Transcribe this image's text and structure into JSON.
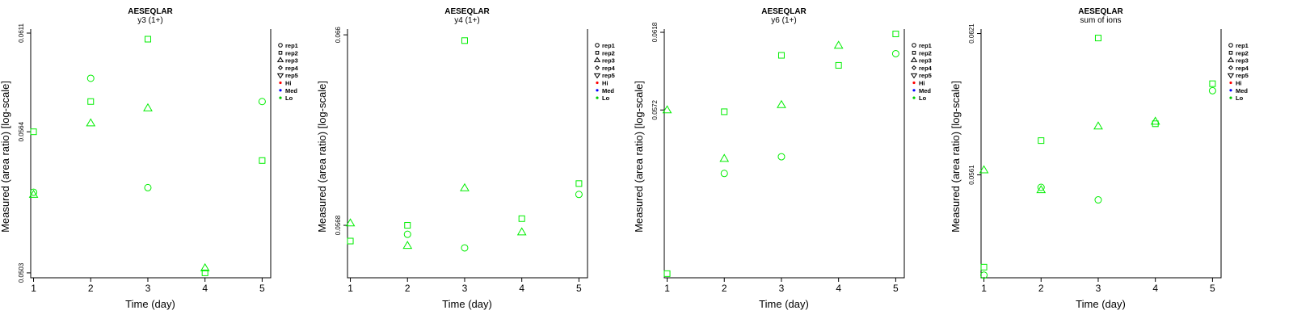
{
  "chart_data": [
    {
      "type": "scatter",
      "title": "AESEQLAR",
      "subtitle": "y3 (1+)",
      "xlabel": "Time (day)",
      "ylabel": "Measured (area ratio) [log-scale]",
      "log_y": true,
      "xlim": [
        0.95,
        5.15
      ],
      "ylim": [
        0.0501,
        0.0613
      ],
      "x_ticks": [
        "1",
        "2",
        "3",
        "4",
        "5"
      ],
      "y_ticks": [
        "0.0503",
        "0.0564",
        "0.0611"
      ],
      "y_tick_values": [
        0.0503,
        0.0564,
        0.0611
      ],
      "grid": false,
      "legend_position": "right",
      "series": [
        {
          "name": "rep1",
          "shape": "circle",
          "x": [
            1,
            2,
            3,
            5
          ],
          "y": [
            0.0537,
            0.0589,
            0.0539,
            0.0578
          ]
        },
        {
          "name": "rep2",
          "shape": "square",
          "x": [
            1,
            2,
            3,
            4,
            5
          ],
          "y": [
            0.0564,
            0.0578,
            0.0608,
            0.0503,
            0.0551
          ]
        },
        {
          "name": "rep3",
          "shape": "triangle-up",
          "x": [
            1,
            2,
            3,
            4
          ],
          "y": [
            0.0536,
            0.0568,
            0.0575,
            0.0505
          ]
        }
      ]
    },
    {
      "type": "scatter",
      "title": "AESEQLAR",
      "subtitle": "y4 (1+)",
      "xlabel": "Time (day)",
      "ylabel": "Measured (area ratio) [log-scale]",
      "log_y": true,
      "xlim": [
        0.95,
        5.15
      ],
      "ylim": [
        0.0545,
        0.0663
      ],
      "x_ticks": [
        "1",
        "2",
        "3",
        "4",
        "5"
      ],
      "y_ticks": [
        "0.0568",
        "0.066"
      ],
      "y_tick_values": [
        0.0568,
        0.066
      ],
      "grid": false,
      "legend_position": "right",
      "series": [
        {
          "name": "rep1",
          "shape": "circle",
          "x": [
            2,
            3,
            5
          ],
          "y": [
            0.0564,
            0.0558,
            0.0582
          ]
        },
        {
          "name": "rep2",
          "shape": "square",
          "x": [
            1,
            2,
            3,
            4,
            5
          ],
          "y": [
            0.0561,
            0.0568,
            0.0657,
            0.0571,
            0.0587
          ]
        },
        {
          "name": "rep3",
          "shape": "triangle-up",
          "x": [
            1,
            2,
            3,
            4
          ],
          "y": [
            0.0569,
            0.0559,
            0.0585,
            0.0565
          ]
        }
      ]
    },
    {
      "type": "scatter",
      "title": "AESEQLAR",
      "subtitle": "y6 (1+)",
      "xlabel": "Time (day)",
      "ylabel": "Measured (area ratio) [log-scale]",
      "log_y": true,
      "xlim": [
        0.95,
        5.15
      ],
      "ylim": [
        0.0484,
        0.062
      ],
      "x_ticks": [
        "1",
        "2",
        "3",
        "4",
        "5"
      ],
      "y_ticks": [
        "0.0572",
        "0.0618"
      ],
      "y_tick_values": [
        0.0572,
        0.0618
      ],
      "grid": false,
      "legend_position": "right",
      "series": [
        {
          "name": "rep1",
          "shape": "circle",
          "x": [
            2,
            3,
            5
          ],
          "y": [
            0.0537,
            0.0546,
            0.0605
          ]
        },
        {
          "name": "rep2",
          "shape": "square",
          "x": [
            1,
            2,
            3,
            4,
            5
          ],
          "y": [
            0.0486,
            0.0571,
            0.0604,
            0.0598,
            0.0617
          ]
        },
        {
          "name": "rep3",
          "shape": "triangle-up",
          "x": [
            1,
            2,
            3,
            4
          ],
          "y": [
            0.0572,
            0.0545,
            0.0575,
            0.061
          ]
        }
      ]
    },
    {
      "type": "scatter",
      "title": "AESEQLAR",
      "subtitle": "sum of ions",
      "xlabel": "Time (day)",
      "ylabel": "Measured (area ratio) [log-scale]",
      "log_y": true,
      "xlim": [
        0.95,
        5.15
      ],
      "ylim": [
        0.0521,
        0.0623
      ],
      "x_ticks": [
        "1",
        "2",
        "3",
        "4",
        "5"
      ],
      "y_ticks": [
        "0.0561",
        "0.0621"
      ],
      "y_tick_values": [
        0.0561,
        0.0621
      ],
      "grid": false,
      "legend_position": "right",
      "series": [
        {
          "name": "rep1",
          "shape": "circle",
          "x": [
            1,
            2,
            3,
            5
          ],
          "y": [
            0.0522,
            0.0556,
            0.0551,
            0.0596
          ]
        },
        {
          "name": "rep2",
          "shape": "square",
          "x": [
            1,
            2,
            3,
            4,
            5
          ],
          "y": [
            0.0525,
            0.0575,
            0.0619,
            0.0582,
            0.0599
          ]
        },
        {
          "name": "rep3",
          "shape": "triangle-up",
          "x": [
            1,
            2,
            3,
            4
          ],
          "y": [
            0.0563,
            0.0555,
            0.0581,
            0.0583
          ]
        }
      ]
    }
  ],
  "legend": {
    "entries": [
      {
        "label": "rep1",
        "symbol": "circle"
      },
      {
        "label": "rep2",
        "symbol": "square"
      },
      {
        "label": "rep3",
        "symbol": "triangle-up"
      },
      {
        "label": "rep4",
        "symbol": "diamond"
      },
      {
        "label": "rep5",
        "symbol": "triangle-down"
      },
      {
        "label": "Hi",
        "symbol": "dot",
        "color": "#ff0000"
      },
      {
        "label": "Med",
        "symbol": "dot",
        "color": "#0000ff"
      },
      {
        "label": "Lo",
        "symbol": "dot",
        "color": "#00cc00"
      }
    ]
  },
  "colors": {
    "points": "#00ee00",
    "axis": "#000000",
    "text": "#000000"
  }
}
